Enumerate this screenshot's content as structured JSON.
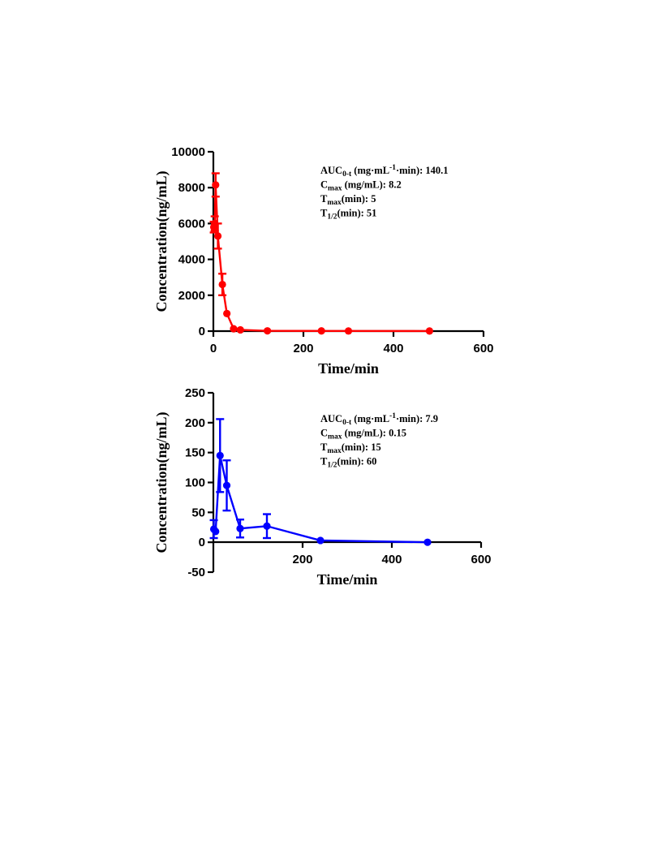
{
  "chart_data": [
    {
      "type": "line",
      "color": "#ff0000",
      "xlabel": "Time/min",
      "ylabel": "Concentration(ng/mL)",
      "xlim": [
        0,
        600
      ],
      "ylim": [
        0,
        10000
      ],
      "xticks": [
        "0",
        "200",
        "400",
        "600"
      ],
      "yticks": [
        "0",
        "2000",
        "4000",
        "6000",
        "8000",
        "10000"
      ],
      "grid": false,
      "error_bars": true,
      "series": [
        {
          "x": [
            1,
            3,
            5,
            10,
            20,
            30,
            45,
            60,
            120,
            240,
            300,
            480
          ],
          "y": [
            5800,
            6000,
            8150,
            5300,
            2600,
            980,
            130,
            70,
            15,
            10,
            8,
            5
          ],
          "err": [
            300,
            400,
            650,
            700,
            600,
            0,
            0,
            0,
            0,
            0,
            0,
            0
          ]
        }
      ],
      "annotations": [
        {
          "main": "AUC",
          "sub": "0-t",
          "tail1": " (mg·mL",
          "sup": "-1",
          "tail2": "·min): 140.1"
        },
        {
          "main": "C",
          "sub": "max",
          "tail1": " (mg/mL): 8.2"
        },
        {
          "main": "T",
          "sub": "max",
          "tail1": "(min): 5"
        },
        {
          "main": "T",
          "sub": "1/2",
          "tail1": "(min): 51"
        }
      ]
    },
    {
      "type": "line",
      "color": "#0000ff",
      "xlabel": "Time/min",
      "ylabel": "Concentration(ng/mL)",
      "xlim": [
        0,
        600
      ],
      "ylim": [
        -50,
        250
      ],
      "xticks": [
        "200",
        "400",
        "600"
      ],
      "yticks": [
        "-50",
        "0",
        "50",
        "100",
        "150",
        "200",
        "250"
      ],
      "grid": false,
      "error_bars": true,
      "series": [
        {
          "x": [
            1,
            5,
            15,
            30,
            60,
            120,
            240,
            480
          ],
          "y": [
            22,
            18,
            145,
            95,
            23,
            27,
            3,
            0
          ],
          "err": [
            15,
            0,
            61,
            42,
            15,
            20,
            0,
            0
          ]
        }
      ],
      "annotations": [
        {
          "main": "AUC",
          "sub": "0-t",
          "tail1": " (mg·mL",
          "sup": "-1",
          "tail2": "·min): 7.9"
        },
        {
          "main": "C",
          "sub": "max",
          "tail1": " (mg/mL): 0.15"
        },
        {
          "main": "T",
          "sub": "max",
          "tail1": "(min): 15"
        },
        {
          "main": "T",
          "sub": "1/2",
          "tail1": "(min): 60"
        }
      ]
    }
  ]
}
